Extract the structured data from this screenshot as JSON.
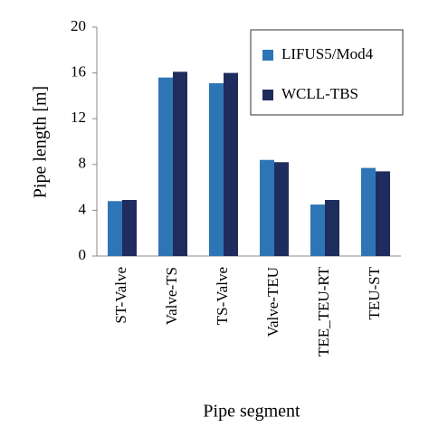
{
  "chart_data": {
    "type": "bar",
    "x_label": "Pipe segment",
    "y_label": "Pipe length [m]",
    "categories": [
      "ST-Valve",
      "Valve-TS",
      "TS-Valve",
      "Valve-TEU",
      "TEE_TEU-RT",
      "TEU-ST"
    ],
    "series": [
      {
        "name": "LIFUS5/Mod4",
        "color": "#2e75b6",
        "values": [
          4.8,
          15.6,
          15.1,
          8.4,
          4.5,
          7.7
        ]
      },
      {
        "name": "WCLL-TBS",
        "color": "#1f2c5e",
        "values": [
          4.9,
          16.1,
          16.0,
          8.2,
          4.9,
          7.4
        ]
      }
    ],
    "ylim": [
      0,
      20
    ],
    "yticks": [
      0,
      4,
      8,
      12,
      16,
      20
    ],
    "grid": false,
    "legend": "top-right"
  }
}
